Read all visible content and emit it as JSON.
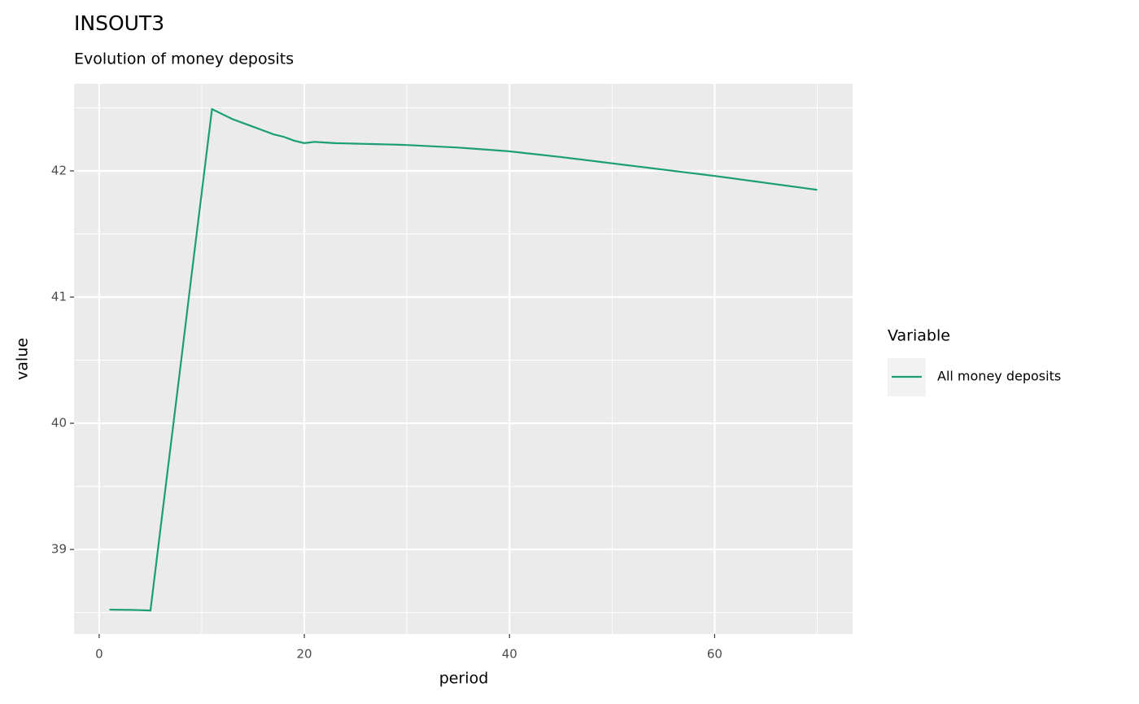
{
  "chart_data": {
    "type": "line",
    "title": "INSOUT3",
    "subtitle": "Evolution of money deposits",
    "x_label": "period",
    "y_label": "value",
    "legend_title": "Variable",
    "legend_position": "right",
    "grid": true,
    "x": [
      1,
      2,
      3,
      4,
      5,
      6,
      7,
      8,
      9,
      10,
      11,
      12,
      13,
      14,
      15,
      16,
      17,
      18,
      19,
      20,
      21,
      22,
      23,
      24,
      25,
      26,
      27,
      28,
      29,
      30,
      31,
      32,
      33,
      34,
      35,
      36,
      37,
      38,
      39,
      40,
      41,
      42,
      43,
      44,
      45,
      46,
      47,
      48,
      49,
      50,
      51,
      52,
      53,
      54,
      55,
      56,
      57,
      58,
      59,
      60,
      61,
      62,
      63,
      64,
      65,
      66,
      67,
      68,
      69,
      70
    ],
    "series": [
      {
        "name": "All money deposits",
        "color": "#1b9e77",
        "values": [
          38.523,
          38.522,
          38.521,
          38.519,
          38.516,
          39.18,
          39.84,
          40.5,
          41.17,
          41.83,
          42.49,
          42.45,
          42.41,
          42.38,
          42.35,
          42.32,
          42.29,
          42.27,
          42.24,
          42.22,
          42.23,
          42.225,
          42.22,
          42.218,
          42.216,
          42.214,
          42.212,
          42.21,
          42.208,
          42.205,
          42.201,
          42.197,
          42.193,
          42.189,
          42.185,
          42.179,
          42.173,
          42.167,
          42.161,
          42.155,
          42.146,
          42.137,
          42.128,
          42.119,
          42.11,
          42.1,
          42.09,
          42.08,
          42.07,
          42.06,
          42.05,
          42.04,
          42.03,
          42.02,
          42.01,
          42.0,
          41.99,
          41.98,
          41.97,
          41.96,
          41.949,
          41.938,
          41.927,
          41.916,
          41.905,
          41.894,
          41.883,
          41.872,
          41.861,
          41.85
        ]
      }
    ],
    "xlim": [
      -2.45,
      73.45
    ],
    "ylim": [
      38.33,
      42.69
    ],
    "xticks": [
      0,
      20,
      40,
      60
    ],
    "yticks": [
      39,
      40,
      41,
      42
    ],
    "x_minor_ticks": [
      10,
      30,
      50,
      70
    ],
    "y_minor_ticks": [
      38.5,
      39.5,
      40.5,
      41.5,
      42.5
    ]
  }
}
